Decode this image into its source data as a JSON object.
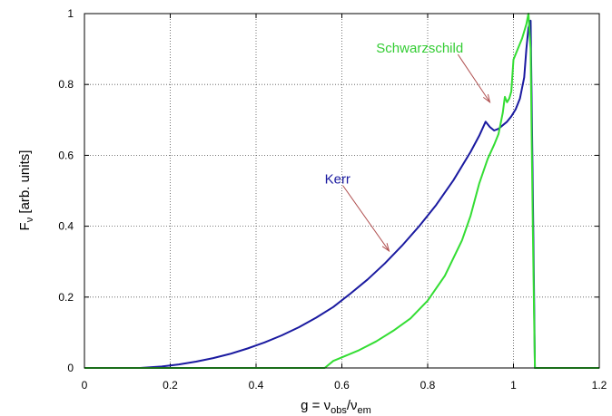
{
  "chart_data": {
    "type": "line",
    "title": "",
    "xlabel": {
      "prefix": "g = ν",
      "sub1": "obs",
      "mid": "/ν",
      "sub2": "em"
    },
    "ylabel": {
      "prefix": "F",
      "sub": "ν",
      "suffix": " [arb. units]"
    },
    "xlim": [
      0,
      1.2
    ],
    "ylim": [
      0,
      1
    ],
    "grid": true,
    "x_ticks": [
      "0",
      "0.2",
      "0.4",
      "0.6",
      "0.8",
      "1",
      "1.2"
    ],
    "y_ticks": [
      "0",
      "0.2",
      "0.4",
      "0.6",
      "0.8",
      "1"
    ],
    "annotations": [
      {
        "text": "Schwarzschild",
        "color": "#33cc33",
        "x": 0.945,
        "y": 0.75,
        "tx": 0.68,
        "ty": 0.89
      },
      {
        "text": "Kerr",
        "color": "#1a1aa0",
        "x": 0.71,
        "y": 0.33,
        "tx": 0.56,
        "ty": 0.52
      }
    ],
    "series": [
      {
        "color": "#1a1aa0",
        "x": [
          0,
          0.13,
          0.18,
          0.22,
          0.26,
          0.3,
          0.34,
          0.38,
          0.42,
          0.46,
          0.5,
          0.54,
          0.58,
          0.62,
          0.66,
          0.7,
          0.74,
          0.78,
          0.82,
          0.86,
          0.9,
          0.92,
          0.935,
          0.945,
          0.955,
          0.965,
          0.975,
          0.985,
          0.995,
          1.005,
          1.015,
          1.025,
          1.03,
          1.035,
          1.04,
          1.042,
          1.045,
          1.048,
          1.05,
          1.2
        ],
        "y": [
          0,
          0,
          0.004,
          0.01,
          0.018,
          0.028,
          0.04,
          0.055,
          0.072,
          0.092,
          0.115,
          0.142,
          0.172,
          0.21,
          0.25,
          0.295,
          0.345,
          0.4,
          0.46,
          0.53,
          0.61,
          0.655,
          0.695,
          0.68,
          0.67,
          0.675,
          0.685,
          0.695,
          0.71,
          0.73,
          0.76,
          0.82,
          0.9,
          0.96,
          0.98,
          0.8,
          0.5,
          0.2,
          0,
          0
        ]
      },
      {
        "color": "#33dd33",
        "x": [
          0,
          0.56,
          0.58,
          0.6,
          0.64,
          0.68,
          0.72,
          0.76,
          0.8,
          0.84,
          0.88,
          0.9,
          0.92,
          0.94,
          0.955,
          0.965,
          0.975,
          0.98,
          0.985,
          0.99,
          0.995,
          1.0,
          1.01,
          1.02,
          1.03,
          1.035,
          1.04,
          1.042,
          1.045,
          1.048,
          1.05,
          1.2
        ],
        "y": [
          0,
          0,
          0.02,
          0.03,
          0.05,
          0.075,
          0.105,
          0.14,
          0.19,
          0.26,
          0.36,
          0.43,
          0.52,
          0.59,
          0.63,
          0.66,
          0.72,
          0.765,
          0.75,
          0.76,
          0.78,
          0.87,
          0.9,
          0.93,
          0.97,
          1.0,
          0.9,
          0.7,
          0.4,
          0.15,
          0,
          0
        ]
      }
    ]
  }
}
